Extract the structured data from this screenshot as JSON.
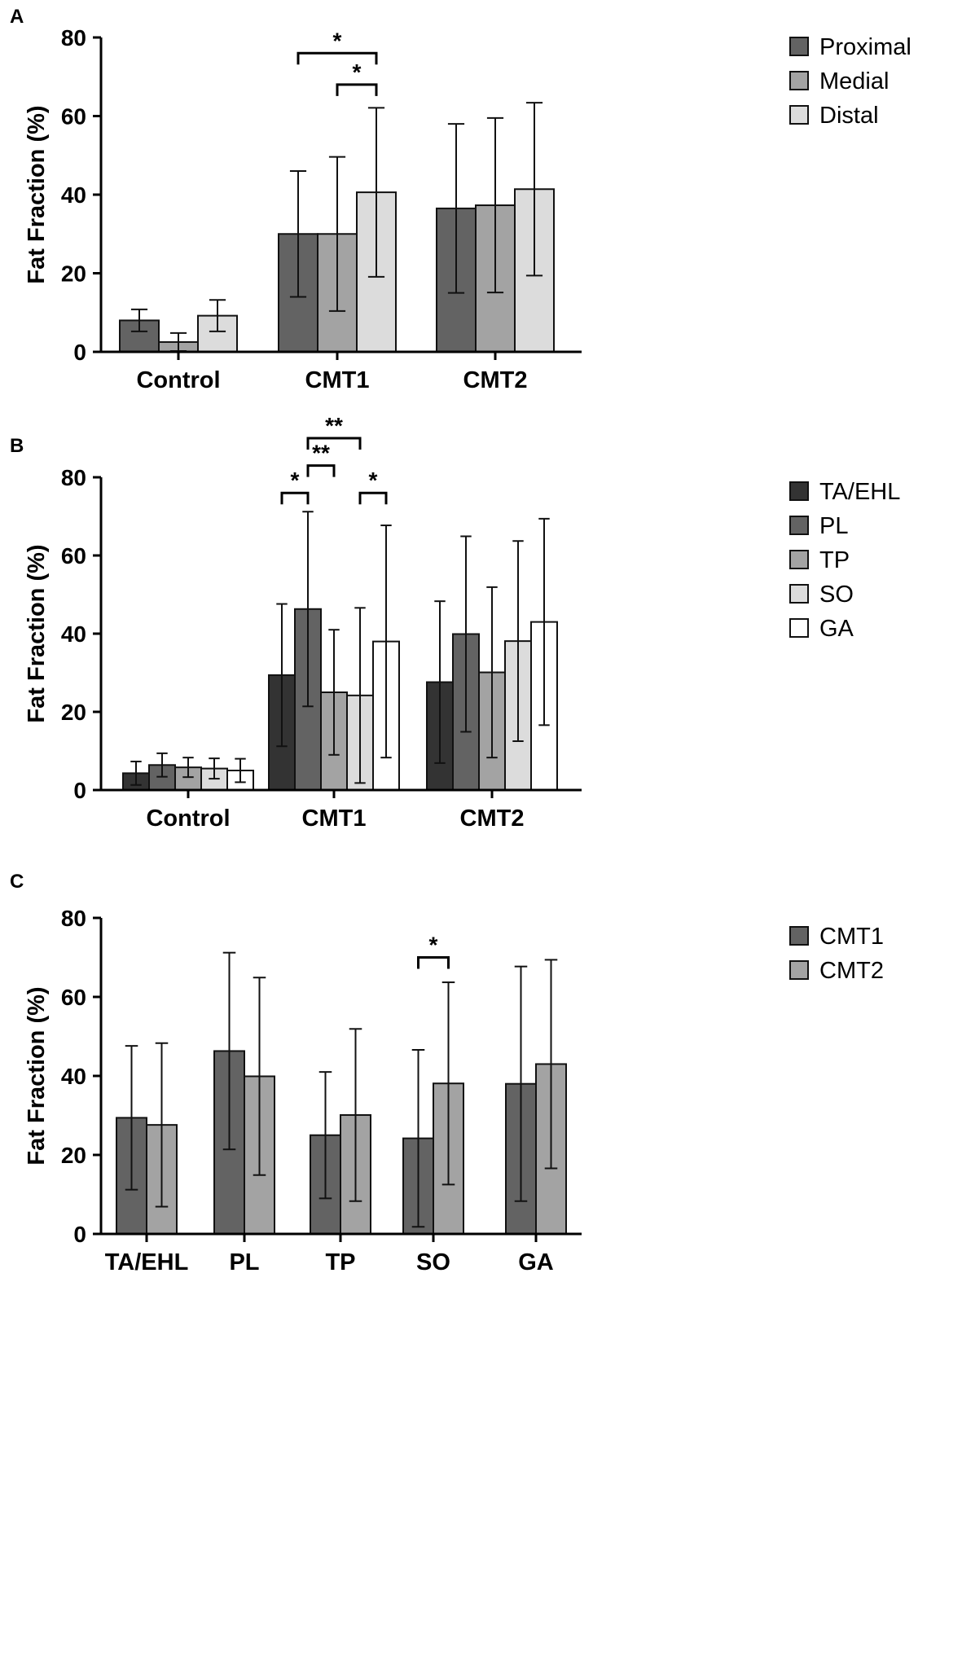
{
  "chart_data": [
    {
      "panel": "A",
      "type": "bar",
      "ylabel": "Fat Fraction (%)",
      "ylim": [
        0,
        80
      ],
      "yticks": [
        0,
        20,
        40,
        60,
        80
      ],
      "categories": [
        "Control",
        "CMT1",
        "CMT2"
      ],
      "series": [
        {
          "name": "Proximal",
          "color": "#636363",
          "values": [
            8,
            30,
            36.5
          ],
          "errors": [
            2.8,
            16,
            21.5
          ]
        },
        {
          "name": "Medial",
          "color": "#a3a3a3",
          "values": [
            2.5,
            30,
            37.3
          ],
          "errors": [
            2.3,
            19.6,
            22.2
          ]
        },
        {
          "name": "Distal",
          "color": "#dcdcdc",
          "values": [
            9.2,
            40.6,
            41.4
          ],
          "errors": [
            4,
            21.5,
            22
          ]
        }
      ],
      "significance": [
        {
          "category": "CMT1",
          "from": "Proximal",
          "to": "Distal",
          "label": "*",
          "level": 76
        },
        {
          "category": "CMT1",
          "from": "Medial",
          "to": "Distal",
          "label": "*",
          "level": 68
        }
      ],
      "legend": "top-right"
    },
    {
      "panel": "B",
      "type": "bar",
      "ylabel": "Fat Fraction (%)",
      "ylim": [
        0,
        80
      ],
      "yticks": [
        0,
        20,
        40,
        60,
        80
      ],
      "categories": [
        "Control",
        "CMT1",
        "CMT2"
      ],
      "series": [
        {
          "name": "TA/EHL",
          "color": "#333333",
          "values": [
            4.3,
            29.4,
            27.6
          ],
          "errors": [
            3,
            18.2,
            20.7
          ]
        },
        {
          "name": "PL",
          "color": "#636363",
          "values": [
            6.4,
            46.3,
            39.9
          ],
          "errors": [
            3,
            24.9,
            25
          ]
        },
        {
          "name": "TP",
          "color": "#a3a3a3",
          "values": [
            5.8,
            25,
            30.1
          ],
          "errors": [
            2.5,
            16,
            21.8
          ]
        },
        {
          "name": "SO",
          "color": "#dcdcdc",
          "values": [
            5.5,
            24.2,
            38.1
          ],
          "errors": [
            2.6,
            22.4,
            25.6
          ]
        },
        {
          "name": "GA",
          "color": "#ffffff",
          "values": [
            5,
            38,
            43
          ],
          "errors": [
            3,
            29.7,
            26.4
          ]
        }
      ],
      "significance": [
        {
          "category": "CMT1",
          "from": "TA/EHL",
          "to": "PL",
          "label": "*",
          "level": 76
        },
        {
          "category": "CMT1",
          "from": "PL",
          "to": "TP",
          "label": "**",
          "level": 83
        },
        {
          "category": "CMT1",
          "from": "PL",
          "to": "SO",
          "label": "**",
          "level": 90
        },
        {
          "category": "CMT1",
          "from": "SO",
          "to": "GA",
          "label": "*",
          "level": 76
        }
      ],
      "legend": "top-right"
    },
    {
      "panel": "C",
      "type": "bar",
      "ylabel": "Fat Fraction (%)",
      "ylim": [
        0,
        80
      ],
      "yticks": [
        0,
        20,
        40,
        60,
        80
      ],
      "categories": [
        "TA/EHL",
        "PL",
        "TP",
        "SO",
        "GA"
      ],
      "series": [
        {
          "name": "CMT1",
          "color": "#636363",
          "values": [
            29.4,
            46.3,
            25,
            24.2,
            38
          ],
          "errors": [
            18.2,
            24.9,
            16,
            22.4,
            29.7
          ]
        },
        {
          "name": "CMT2",
          "color": "#a3a3a3",
          "values": [
            27.6,
            39.9,
            30.1,
            38.1,
            43
          ],
          "errors": [
            20.7,
            25,
            21.8,
            25.6,
            26.4
          ]
        }
      ],
      "significance": [
        {
          "category": "SO",
          "from": "CMT1",
          "to": "CMT2",
          "label": "*",
          "level": 70
        }
      ],
      "legend": "top-right"
    }
  ]
}
